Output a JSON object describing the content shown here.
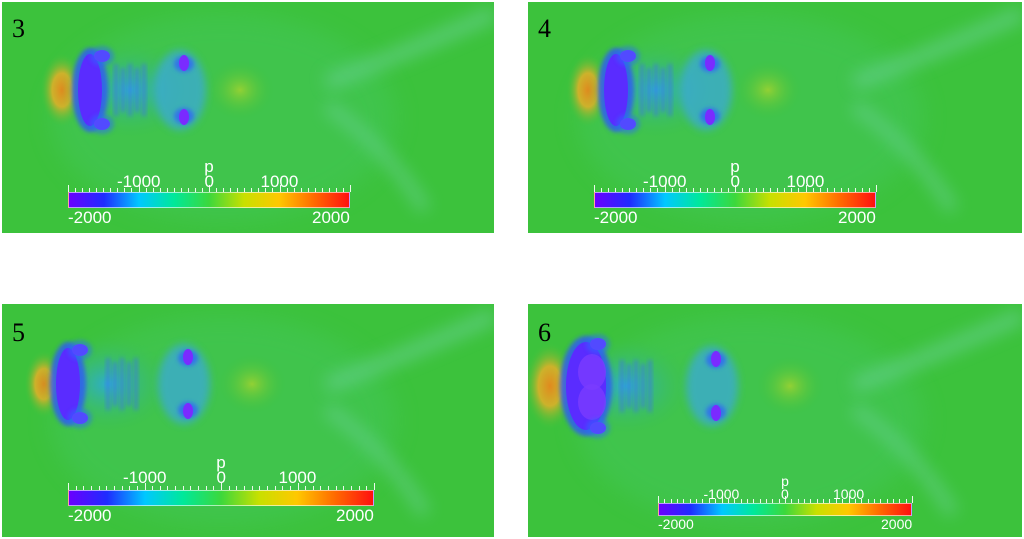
{
  "panels": [
    {
      "label": "3"
    },
    {
      "label": "4"
    },
    {
      "label": "5"
    },
    {
      "label": "6"
    }
  ],
  "colorbar": {
    "title": "p",
    "tick_labels": [
      "-1000",
      "0",
      "1000"
    ],
    "min_label": "-2000",
    "max_label": "2000",
    "min_value": -2000,
    "max_value": 2000,
    "colors": [
      "#6a00ff",
      "#1f2cff",
      "#00c8ff",
      "#00e89a",
      "#3cd83c",
      "#c8e000",
      "#ffc800",
      "#ff6a00",
      "#ff1010"
    ]
  },
  "colors": {
    "background_field": "#3cc23c",
    "high_pressure": "#e08a1e",
    "low_pressure": "#5b2cff"
  }
}
